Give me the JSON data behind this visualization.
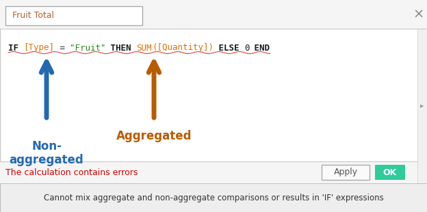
{
  "title_text": "Fruit Total",
  "close_symbol": "×",
  "code_parts": [
    {
      "text": "IF ",
      "color": "#1a1a1a",
      "bold": true,
      "mono": true
    },
    {
      "text": "[Type]",
      "color": "#E07000",
      "bold": false,
      "mono": true
    },
    {
      "text": " = ",
      "color": "#1a1a1a",
      "bold": false,
      "mono": true
    },
    {
      "text": "\"Fruit\"",
      "color": "#228B22",
      "bold": false,
      "mono": true
    },
    {
      "text": " THEN ",
      "color": "#1a1a1a",
      "bold": true,
      "mono": true
    },
    {
      "text": "SUM",
      "color": "#E07000",
      "bold": false,
      "mono": true
    },
    {
      "text": "([Quantity])",
      "color": "#E07000",
      "bold": false,
      "mono": true
    },
    {
      "text": " ELSE ",
      "color": "#1a1a1a",
      "bold": true,
      "mono": true
    },
    {
      "text": "0",
      "color": "#1a1a1a",
      "bold": false,
      "mono": true
    },
    {
      "text": " END",
      "color": "#1a1a1a",
      "bold": true,
      "mono": true
    }
  ],
  "arrow1_color": "#2469B0",
  "arrow2_color": "#B85C00",
  "label1_text": "Non-\naggregated",
  "label1_color": "#2469B0",
  "label2_text": "Aggregated",
  "label2_color": "#B85C00",
  "error_text": "The calculation contains errors",
  "error_color": "#cc0000",
  "apply_btn_text": "Apply",
  "ok_btn_text": "OK",
  "ok_btn_color": "#2ECC9A",
  "tooltip_text": "Cannot mix aggregate and non-aggregate comparisons or results in 'IF' expressions",
  "tooltip_bg": "#EEEEEE",
  "bg_color": "#FFFFFF",
  "border_color": "#C8C8C8",
  "underline_color": "#E04040",
  "title_bg": "#F5F5F5"
}
